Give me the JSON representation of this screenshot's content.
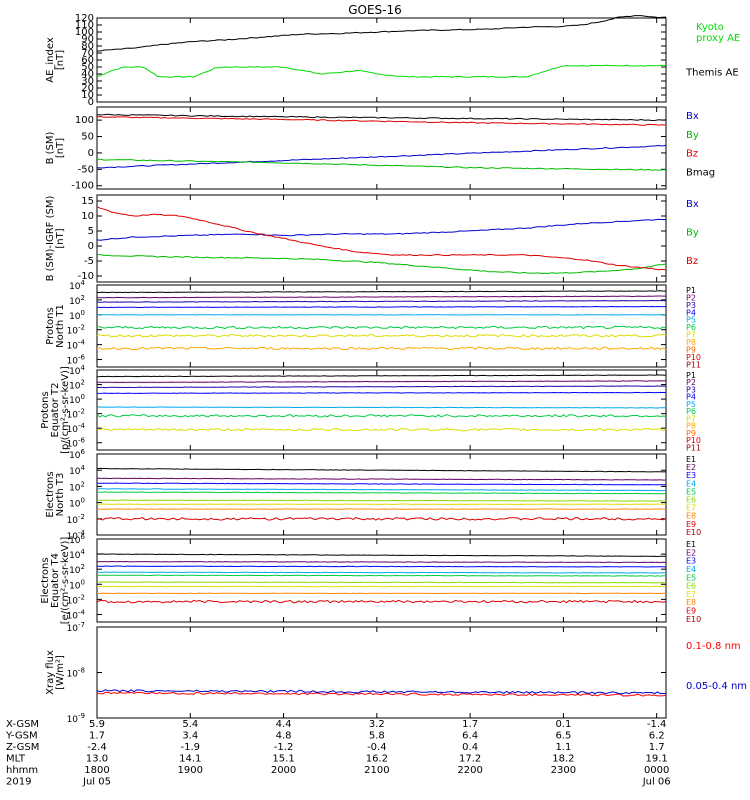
{
  "figure": {
    "title": "GOES-16"
  },
  "chart_data": [
    {
      "type": "line",
      "panel": "ae",
      "ylabel": [
        "AE_index",
        "[nT]"
      ],
      "ylim": [
        0,
        120
      ],
      "yticks": [
        0,
        10,
        20,
        30,
        40,
        50,
        60,
        70,
        80,
        90,
        100,
        110,
        120
      ],
      "ytick_labels": [
        "0",
        "10",
        "20",
        "30",
        "40",
        "50",
        "60",
        "70",
        "80",
        "90",
        "100",
        "110",
        "120"
      ],
      "legend_position": "right",
      "series": [
        {
          "name": "Kyoto proxy AE",
          "color": "#00dd00",
          "label_lines": [
            "Kyoto",
            "proxy AE"
          ],
          "x": [
            0,
            0.08,
            0.15,
            0.25,
            0.33,
            0.4,
            0.47,
            0.52,
            0.63,
            0.67,
            0.8,
            1.0,
            1.1,
            1.2,
            1.4,
            1.5,
            1.66,
            1.78,
            2.0,
            2.3,
            2.5,
            3.0,
            3.05
          ],
          "y": [
            36,
            45,
            50,
            50,
            36,
            36,
            36,
            36,
            48,
            50,
            50,
            50,
            45,
            40,
            45,
            40,
            36,
            36,
            36,
            36,
            52,
            52,
            52
          ]
        },
        {
          "name": "Themis AE",
          "color": "#000000",
          "label_lines": [
            "Themis AE"
          ],
          "x": [
            0,
            0.1,
            0.2,
            0.35,
            0.5,
            0.7,
            0.9,
            1.1,
            1.3,
            1.5,
            1.7,
            1.9,
            2.1,
            2.3,
            2.5,
            2.6,
            2.7,
            2.8,
            2.9,
            3.0,
            3.05
          ],
          "y": [
            73,
            75,
            77,
            82,
            86,
            89,
            93,
            97,
            98,
            100,
            102,
            103,
            104,
            107,
            108,
            110,
            115,
            121,
            124,
            121,
            121
          ]
        }
      ]
    },
    {
      "type": "line",
      "panel": "b_sm",
      "ylabel": [
        "B (SM)",
        "[nT]"
      ],
      "ylim": [
        -110,
        140
      ],
      "yticks": [
        -100,
        -50,
        0,
        50,
        100
      ],
      "ytick_labels": [
        "-100",
        "-50",
        "0",
        "50",
        "100"
      ],
      "legend_position": "right",
      "series": [
        {
          "name": "Bx",
          "color": "#0000cc",
          "label_lines": [
            "Bx"
          ],
          "x": [
            0,
            3.05
          ],
          "y": [
            -45,
            22
          ]
        },
        {
          "name": "By",
          "color": "#00bb00",
          "label_lines": [
            "By"
          ],
          "x": [
            0,
            1.0,
            2.0,
            3.05
          ],
          "y": [
            -20,
            -30,
            -45,
            -52
          ]
        },
        {
          "name": "Bz",
          "color": "#dd0000",
          "label_lines": [
            "Bz"
          ],
          "x": [
            0,
            1.0,
            2.0,
            3.05
          ],
          "y": [
            110,
            102,
            92,
            85
          ]
        },
        {
          "name": "Bmag",
          "color": "#000000",
          "label_lines": [
            "Bmag"
          ],
          "x": [
            0,
            1.0,
            2.0,
            3.05
          ],
          "y": [
            117,
            110,
            105,
            100
          ]
        }
      ]
    },
    {
      "type": "line",
      "panel": "b_igrf",
      "ylabel": [
        "B (SM)-IGRF (SM)",
        "[nT]"
      ],
      "ylim": [
        -12,
        17
      ],
      "yticks": [
        -10,
        -5,
        0,
        5,
        10,
        15
      ],
      "ytick_labels": [
        "-10",
        "-5",
        "0",
        "5",
        "10",
        "15"
      ],
      "legend_position": "right",
      "series": [
        {
          "name": "Bx",
          "color": "#0000cc",
          "label_lines": [
            "Bx"
          ],
          "x": [
            0,
            0.2,
            0.5,
            0.8,
            1.0,
            1.3,
            1.6,
            1.8,
            2.0,
            2.3,
            2.6,
            2.9,
            3.05
          ],
          "y": [
            2,
            3,
            3.5,
            4,
            3.5,
            4,
            4,
            4.5,
            5,
            6,
            7.5,
            8.5,
            9
          ]
        },
        {
          "name": "By",
          "color": "#00bb00",
          "label_lines": [
            "By"
          ],
          "x": [
            0,
            0.3,
            0.6,
            0.9,
            1.2,
            1.5,
            1.8,
            2.1,
            2.3,
            2.5,
            2.7,
            2.9,
            3.05
          ],
          "y": [
            -3,
            -3.5,
            -3.8,
            -4,
            -4.5,
            -5.5,
            -7,
            -8.5,
            -9,
            -9,
            -8.5,
            -7.5,
            -6
          ]
        },
        {
          "name": "Bz",
          "color": "#dd0000",
          "label_lines": [
            "Bz"
          ],
          "x": [
            0,
            0.1,
            0.2,
            0.3,
            0.45,
            0.6,
            0.8,
            1.0,
            1.2,
            1.4,
            1.6,
            1.8,
            2.0,
            2.3,
            2.6,
            2.8,
            3.05
          ],
          "y": [
            13,
            11,
            10,
            10.5,
            10,
            8,
            5,
            2.5,
            0,
            -2,
            -3,
            -3,
            -3,
            -3,
            -4.5,
            -6.5,
            -8
          ]
        }
      ]
    },
    {
      "type": "line",
      "panel": "protons_t1",
      "ylabel": [
        "Protons",
        "North T1"
      ],
      "log_scale": true,
      "ylim_log10": [
        -7,
        4
      ],
      "ytick_exponents": [
        -6,
        -4,
        -2,
        0,
        2,
        4
      ],
      "legend_position": "right",
      "series": [
        {
          "name": "P1",
          "color": "#000000",
          "log10_levels": [
            3.0,
            3.2
          ]
        },
        {
          "name": "P2",
          "color": "#660066",
          "log10_levels": [
            2.3,
            2.5
          ]
        },
        {
          "name": "P3",
          "color": "#2200aa",
          "log10_levels": [
            1.7,
            1.9
          ]
        },
        {
          "name": "P4",
          "color": "#0000ff",
          "log10_levels": [
            1.0,
            1.1
          ]
        },
        {
          "name": "P5",
          "color": "#00aaee",
          "log10_levels": [
            0.0,
            0.0
          ]
        },
        {
          "name": "P6",
          "color": "#00cc44",
          "log10_levels": [
            -1.7,
            -1.7
          ]
        },
        {
          "name": "P7",
          "color": "#dddd00",
          "log10_levels": [
            -2.8,
            -2.8
          ]
        },
        {
          "name": "P8",
          "color": "#ffaa00",
          "log10_levels": [
            -4.5,
            -4.5
          ]
        },
        {
          "name": "P9",
          "color": "#ff6600"
        },
        {
          "name": "P10",
          "color": "#dd0000"
        },
        {
          "name": "P11",
          "color": "#aa0000"
        }
      ]
    },
    {
      "type": "line",
      "panel": "protons_t2",
      "ylabel": [
        "Protons",
        "Equator T2",
        "[p/(cm²-s-sr-keV)]"
      ],
      "log_scale": true,
      "ylim_log10": [
        -7,
        4
      ],
      "ytick_exponents": [
        -6,
        -4,
        -2,
        0,
        2,
        4
      ],
      "legend_position": "right",
      "series": [
        {
          "name": "P1",
          "color": "#000000",
          "log10_levels": [
            3.1,
            3.3
          ]
        },
        {
          "name": "P2",
          "color": "#660066",
          "log10_levels": [
            2.3,
            2.5
          ]
        },
        {
          "name": "P3",
          "color": "#2200aa",
          "log10_levels": [
            1.6,
            1.8
          ]
        },
        {
          "name": "P4",
          "color": "#0000ff",
          "log10_levels": [
            0.8,
            0.9
          ]
        },
        {
          "name": "P5",
          "color": "#00aaee",
          "log10_levels": [
            -1.1,
            -1.2
          ]
        },
        {
          "name": "P6",
          "color": "#00cc44",
          "log10_levels": [
            -2.3,
            -2.3
          ]
        },
        {
          "name": "P7",
          "color": "#dddd00",
          "log10_levels": [
            -4.2,
            -4.2
          ]
        },
        {
          "name": "P8",
          "color": "#ffaa00"
        },
        {
          "name": "P9",
          "color": "#ff6600"
        },
        {
          "name": "P10",
          "color": "#dd0000"
        },
        {
          "name": "P11",
          "color": "#aa0000"
        }
      ]
    },
    {
      "type": "line",
      "panel": "electrons_t3",
      "ylabel": [
        "Electrons",
        "North T3"
      ],
      "log_scale": true,
      "ylim_log10": [
        -4,
        6
      ],
      "ytick_exponents": [
        -4,
        -2,
        0,
        2,
        4,
        6
      ],
      "legend_position": "right",
      "series": [
        {
          "name": "E1",
          "color": "#000000",
          "log10_levels": [
            4.2,
            3.8
          ]
        },
        {
          "name": "E2",
          "color": "#660066",
          "log10_levels": [
            3.0,
            2.8
          ]
        },
        {
          "name": "E3",
          "color": "#0000ff",
          "log10_levels": [
            2.4,
            2.2
          ]
        },
        {
          "name": "E4",
          "color": "#00aaee",
          "log10_levels": [
            1.7,
            1.5
          ]
        },
        {
          "name": "E5",
          "color": "#00cc44",
          "log10_levels": [
            1.3,
            1.1
          ]
        },
        {
          "name": "E6",
          "color": "#88dd00",
          "log10_levels": [
            0.3,
            0.2
          ]
        },
        {
          "name": "E7",
          "color": "#dddd00",
          "log10_levels": [
            -0.2,
            -0.2
          ]
        },
        {
          "name": "E8",
          "color": "#ff8800",
          "log10_levels": [
            -0.8,
            -0.8
          ]
        },
        {
          "name": "E9",
          "color": "#dd0000",
          "log10_levels": [
            -2.0,
            -2.0
          ]
        },
        {
          "name": "E10",
          "color": "#aa0000"
        }
      ]
    },
    {
      "type": "line",
      "panel": "electrons_t4",
      "ylabel": [
        "Electrons",
        "Equator T4",
        "[e/(cm²-s-sr-keV)]"
      ],
      "log_scale": true,
      "ylim_log10": [
        -5,
        6
      ],
      "ytick_exponents": [
        -4,
        -2,
        0,
        2,
        4,
        6
      ],
      "legend_position": "right",
      "series": [
        {
          "name": "E1",
          "color": "#000000",
          "log10_levels": [
            4.0,
            3.7
          ]
        },
        {
          "name": "E2",
          "color": "#660066",
          "log10_levels": [
            3.0,
            2.9
          ]
        },
        {
          "name": "E3",
          "color": "#0000ff",
          "log10_levels": [
            2.4,
            2.3
          ]
        },
        {
          "name": "E4",
          "color": "#00aaee",
          "log10_levels": [
            1.6,
            1.5
          ]
        },
        {
          "name": "E5",
          "color": "#00cc44",
          "log10_levels": [
            1.2,
            1.1
          ]
        },
        {
          "name": "E6",
          "color": "#88dd00",
          "log10_levels": [
            0.3,
            0.2
          ]
        },
        {
          "name": "E7",
          "color": "#dddd00",
          "log10_levels": [
            -0.3,
            -0.3
          ]
        },
        {
          "name": "E8",
          "color": "#ff8800",
          "log10_levels": [
            -1.2,
            -1.2
          ]
        },
        {
          "name": "E9",
          "color": "#dd0000",
          "log10_levels": [
            -2.3,
            -2.3
          ]
        },
        {
          "name": "E10",
          "color": "#aa0000"
        }
      ]
    },
    {
      "type": "line",
      "panel": "xray",
      "ylabel": [
        "Xray flux",
        "[W/m²]"
      ],
      "log_scale": true,
      "ylim_log10": [
        -9,
        -7
      ],
      "ytick_exponents": [
        -9,
        -8,
        -7
      ],
      "legend_position": "right",
      "series": [
        {
          "name": "0.1-0.8 nm",
          "color": "#ff0000",
          "log10_levels": [
            -8.45,
            -8.5
          ]
        },
        {
          "name": "0.05-0.4 nm",
          "color": "#0000cc",
          "log10_levels": [
            -8.4,
            -8.45
          ]
        }
      ]
    }
  ],
  "x_axis": {
    "range_hours": [
      0,
      3.05
    ],
    "tick_hours": [
      0,
      0.5,
      1,
      1.5,
      2,
      2.5,
      3
    ],
    "rows": [
      {
        "label": "X-GSM",
        "values": [
          "5.9",
          "5.4",
          "4.4",
          "3.2",
          "1.7",
          "0.1",
          "-1.4"
        ]
      },
      {
        "label": "Y-GSM",
        "values": [
          "1.7",
          "3.4",
          "4.8",
          "5.8",
          "6.4",
          "6.5",
          "6.2"
        ]
      },
      {
        "label": "Z-GSM",
        "values": [
          "-2.4",
          "-1.9",
          "-1.2",
          "-0.4",
          "0.4",
          "1.1",
          "1.7"
        ]
      },
      {
        "label": "MLT",
        "values": [
          "13.0",
          "14.1",
          "15.1",
          "16.2",
          "17.2",
          "18.2",
          "19.1"
        ]
      },
      {
        "label": "hhmm",
        "values": [
          "1800",
          "1900",
          "2000",
          "2100",
          "2200",
          "2300",
          "0000"
        ]
      },
      {
        "label": "2019",
        "values": [
          "Jul 05",
          "",
          "",
          "",
          "",
          "",
          "Jul 06"
        ]
      }
    ]
  }
}
